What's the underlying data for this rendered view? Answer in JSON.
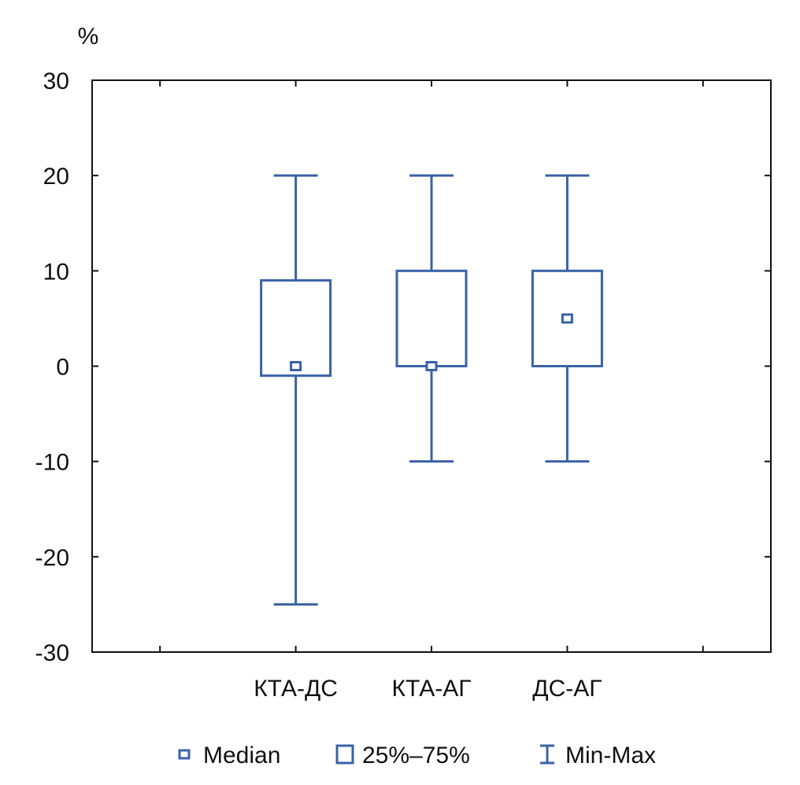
{
  "colors": {
    "series": "#3a62a6",
    "axis": "#111111",
    "text": "#111111"
  },
  "chart_data": {
    "type": "boxplot",
    "ylabel": "%",
    "ylim": [
      -30,
      30
    ],
    "yticks": [
      30,
      20,
      10,
      0,
      -10,
      -20,
      -30
    ],
    "categories": [
      "КТА-ДС",
      "КТА-АГ",
      "ДС-АГ"
    ],
    "boxes": [
      {
        "category": "КТА-ДС",
        "min": -25,
        "q1": -1,
        "median": 0,
        "q3": 9,
        "max": 20
      },
      {
        "category": "КТА-АГ",
        "min": -10,
        "q1": 0,
        "median": 0,
        "q3": 10,
        "max": 20
      },
      {
        "category": "ДС-АГ",
        "min": -10,
        "q1": 0,
        "median": 5,
        "q3": 10,
        "max": 20
      }
    ],
    "grid": false,
    "legend_position": "bottom",
    "legend": [
      {
        "symbol": "median",
        "label": "Median"
      },
      {
        "symbol": "box",
        "label": "25%–75%"
      },
      {
        "symbol": "whisker",
        "label": "Min-Max"
      }
    ]
  }
}
